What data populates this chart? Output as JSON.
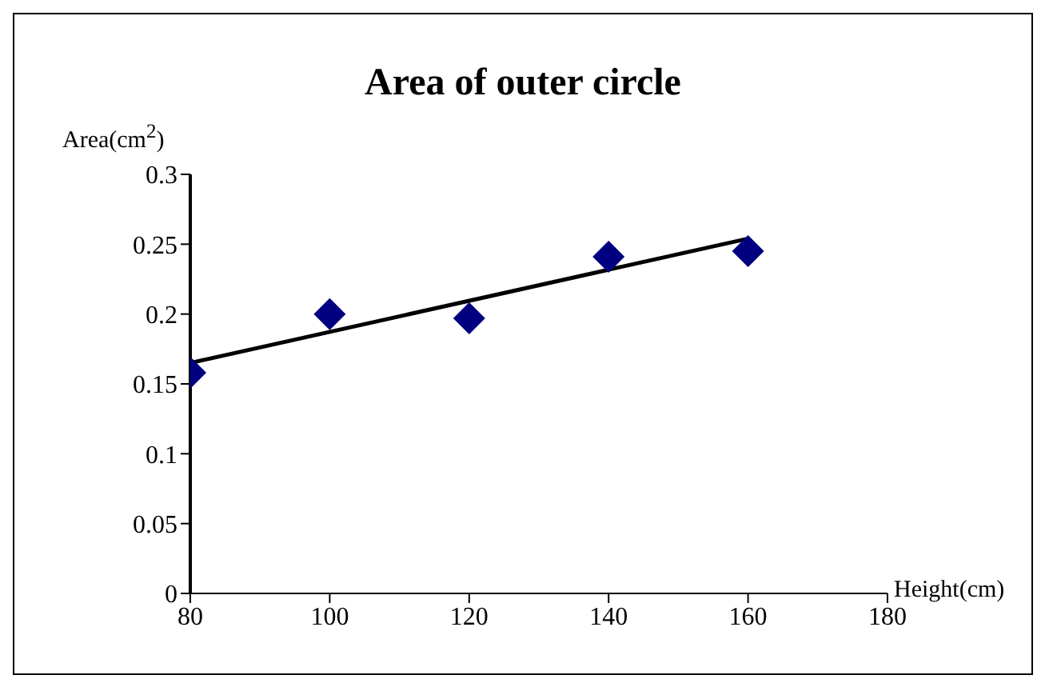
{
  "chart_data": {
    "type": "scatter",
    "title": "Area of outer circle",
    "xlabel": "Height(cm)",
    "ylabel": "Area(cm$^{2}$)",
    "x": [
      80,
      100,
      120,
      140,
      160
    ],
    "series": [
      {
        "color": "#000080",
        "marker": "diamond",
        "values": [
          0.158,
          0.2,
          0.197,
          0.241,
          0.245
        ]
      },
      {
        "type": "line",
        "color": "#000000",
        "x": [
          80,
          160
        ],
        "values": [
          0.165,
          0.254
        ]
      }
    ],
    "xlim": [
      80,
      180
    ],
    "xticks": [
      80,
      100,
      120,
      140,
      160,
      180
    ],
    "ylim": [
      0,
      0.3
    ],
    "yticks": [
      0,
      0.05,
      0.1,
      0.15,
      0.2,
      0.25,
      0.3
    ],
    "grid": false
  }
}
